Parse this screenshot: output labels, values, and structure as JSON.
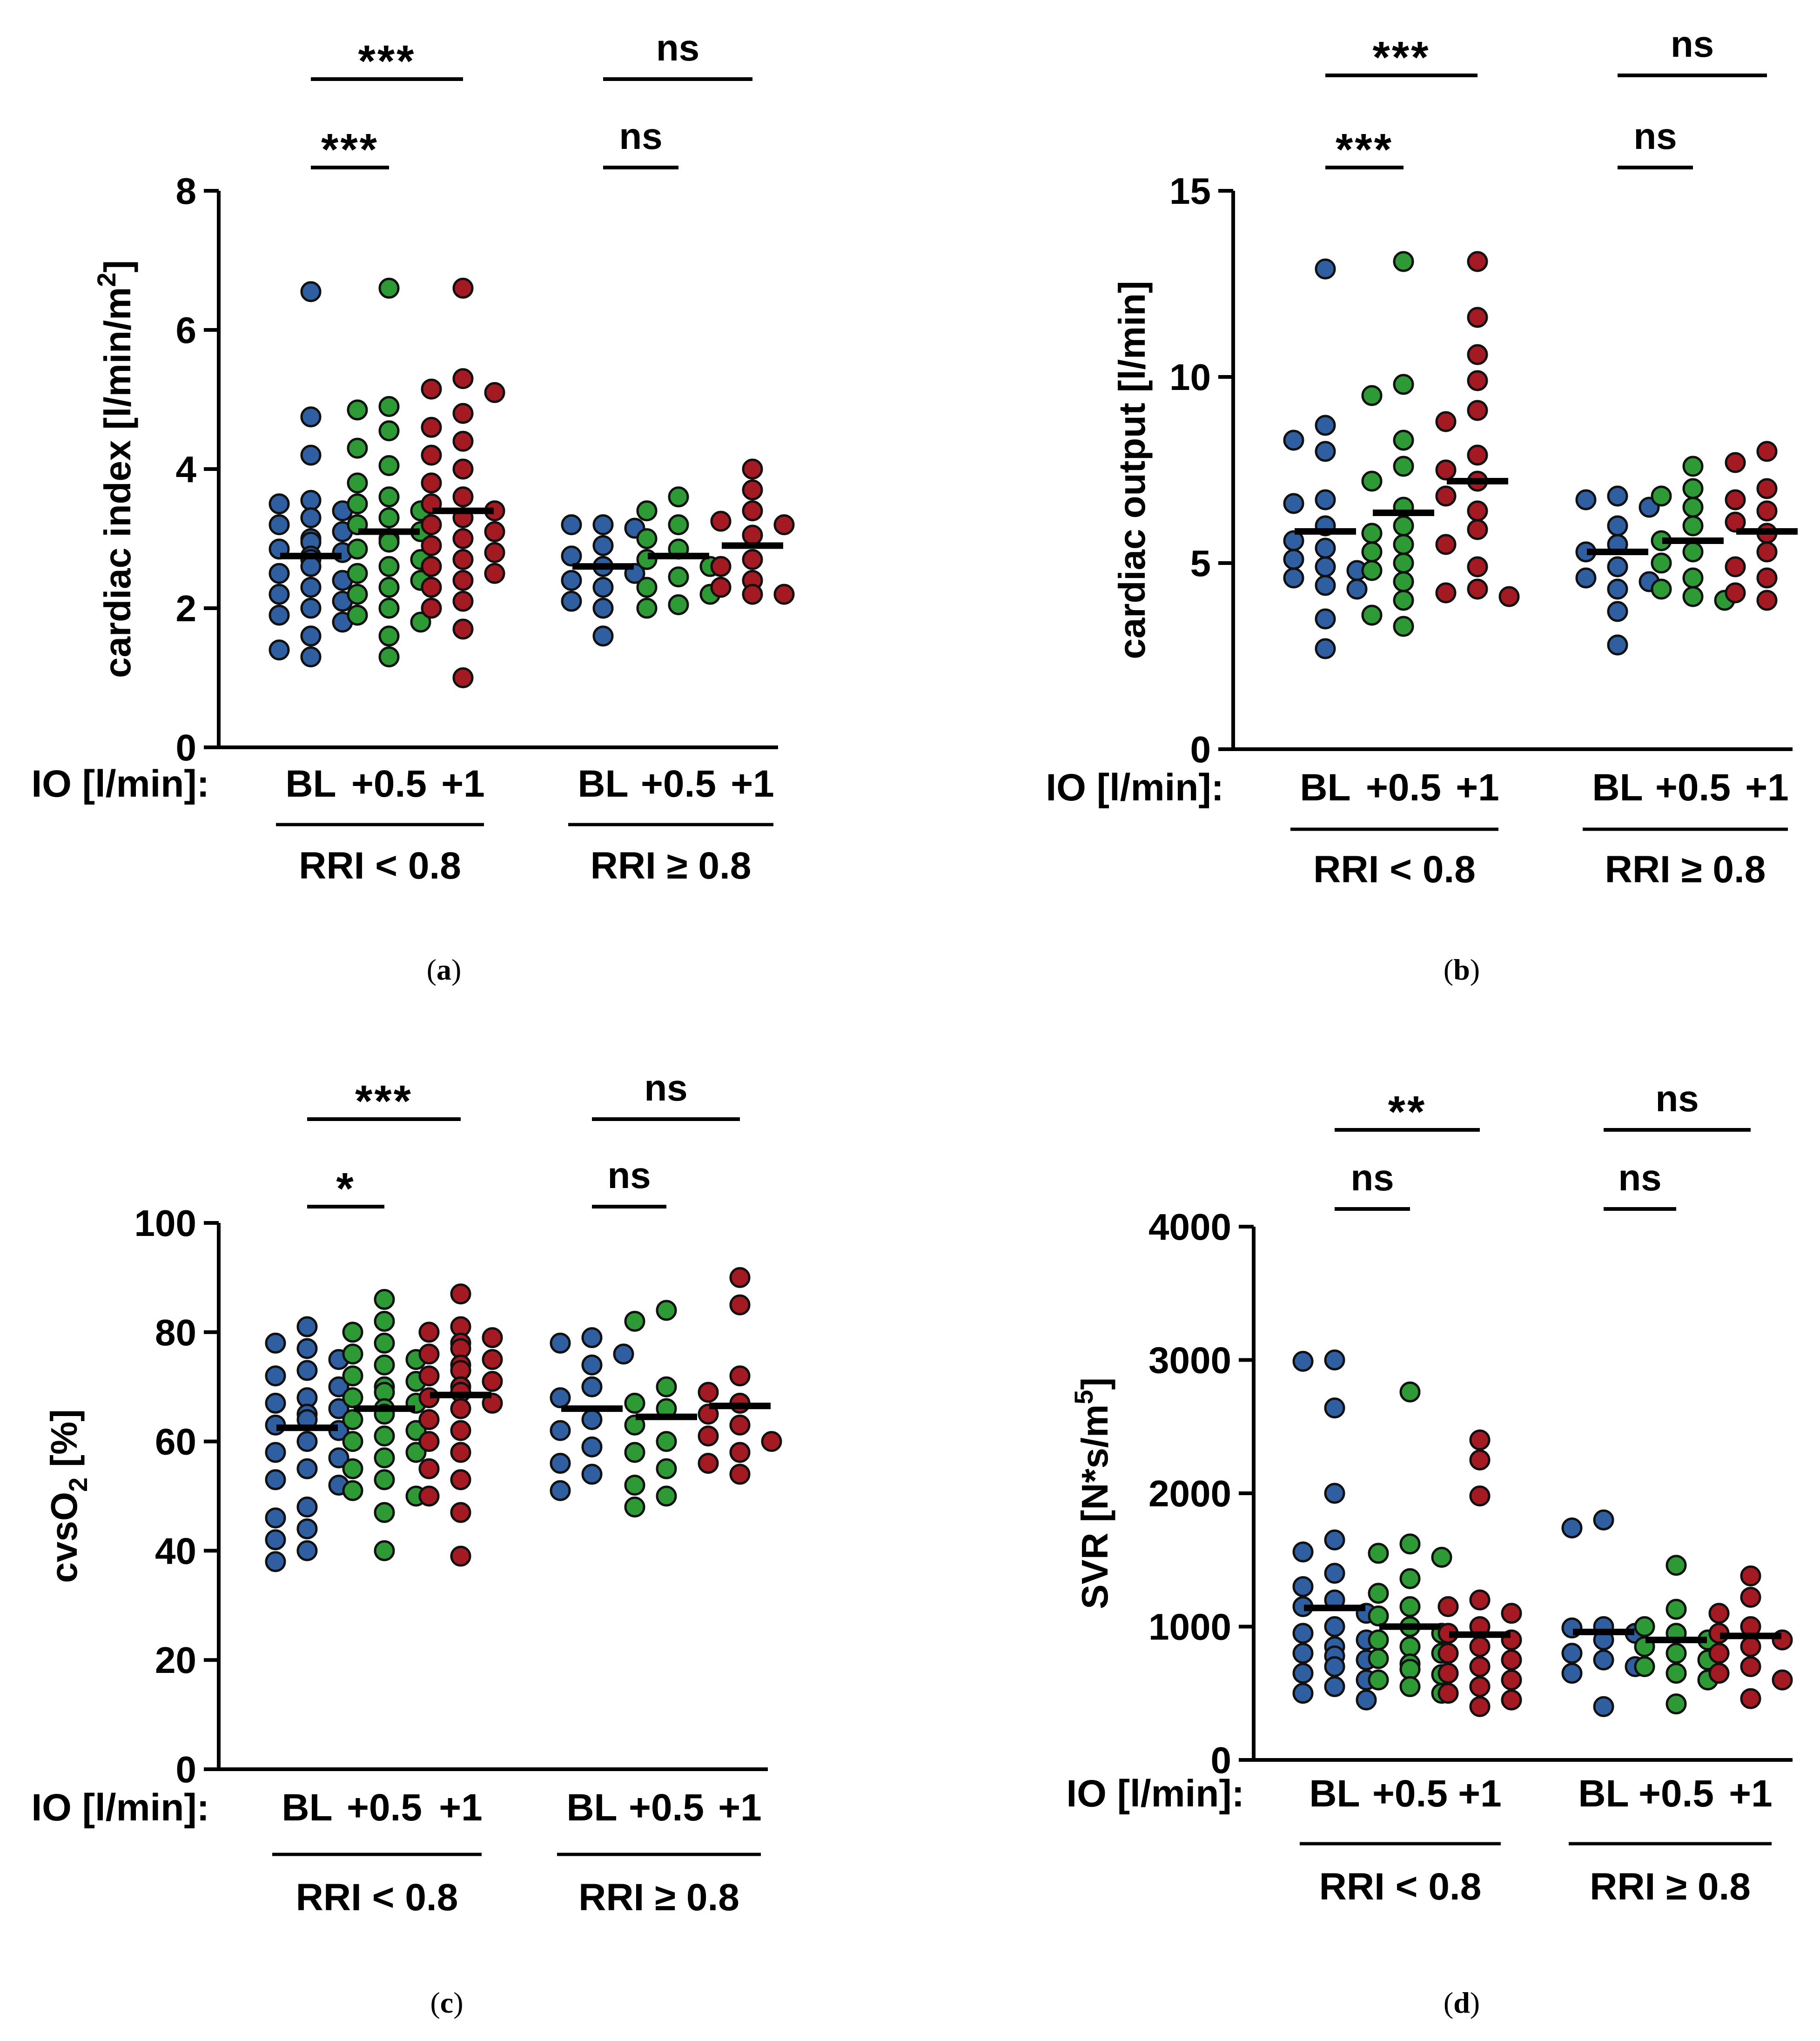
{
  "figure": {
    "io_label": "IO [l/min]:",
    "x_ticks": [
      "BL",
      "+0.5",
      "+1"
    ],
    "groups": [
      "RRI < 0.8",
      "RRI ≥ 0.8"
    ],
    "colors": {
      "BL": "#2f5fa0",
      "+0.5": "#2e9a35",
      "+1": "#a31a22",
      "edge": "#111111",
      "mean": "#000000"
    }
  },
  "chart_data": [
    {
      "id": "a",
      "type": "scatter",
      "caption": "a",
      "ylabel": "cardiac index [l/min/m2]",
      "ylabel_parts": {
        "main": "cardiac index [l/min/m",
        "sup": "2",
        "tail": "]"
      },
      "ylim": [
        0,
        8
      ],
      "yticks": [
        0,
        2,
        4,
        6,
        8
      ],
      "series": [
        {
          "group": "RRI < 0.8",
          "level": "BL",
          "mean": 2.75,
          "values": [
            6.55,
            4.75,
            4.2,
            3.55,
            3.5,
            3.4,
            3.3,
            3.2,
            3.1,
            3.0,
            2.95,
            2.85,
            2.8,
            2.75,
            2.7,
            2.6,
            2.5,
            2.4,
            2.3,
            2.2,
            2.1,
            2.0,
            1.9,
            1.8,
            1.6,
            1.4,
            1.3
          ]
        },
        {
          "group": "RRI < 0.8",
          "level": "+0.5",
          "mean": 3.1,
          "values": [
            6.6,
            4.9,
            4.85,
            4.55,
            4.3,
            4.05,
            3.8,
            3.6,
            3.5,
            3.4,
            3.3,
            3.2,
            3.1,
            3.0,
            2.95,
            2.85,
            2.7,
            2.6,
            2.5,
            2.4,
            2.3,
            2.2,
            2.0,
            1.9,
            1.8,
            1.6,
            1.3
          ]
        },
        {
          "group": "RRI < 0.8",
          "level": "+1",
          "mean": 3.4,
          "values": [
            6.6,
            5.3,
            5.15,
            5.1,
            4.8,
            4.6,
            4.4,
            4.2,
            4.0,
            3.8,
            3.6,
            3.5,
            3.4,
            3.3,
            3.2,
            3.1,
            3.0,
            2.9,
            2.8,
            2.7,
            2.6,
            2.5,
            2.4,
            2.3,
            2.1,
            2.0,
            1.7,
            1.0
          ]
        },
        {
          "group": "RRI ≥ 0.8",
          "level": "BL",
          "mean": 2.6,
          "values": [
            3.2,
            3.2,
            3.15,
            2.9,
            2.75,
            2.6,
            2.5,
            2.4,
            2.3,
            2.1,
            2.0,
            1.6
          ]
        },
        {
          "group": "RRI ≥ 0.8",
          "level": "+0.5",
          "mean": 2.75,
          "values": [
            3.6,
            3.4,
            3.2,
            3.0,
            2.85,
            2.7,
            2.6,
            2.45,
            2.3,
            2.2,
            2.05,
            2.0
          ]
        },
        {
          "group": "RRI ≥ 0.8",
          "level": "+1",
          "mean": 2.9,
          "values": [
            4.0,
            3.7,
            3.4,
            3.25,
            3.2,
            3.05,
            2.7,
            2.6,
            2.4,
            2.3,
            2.2,
            2.2
          ]
        }
      ],
      "significance": [
        {
          "group": "RRI < 0.8",
          "from": "BL",
          "to": "+1",
          "label": "***",
          "tier": 2
        },
        {
          "group": "RRI < 0.8",
          "from": "BL",
          "to": "+0.5",
          "label": "***",
          "tier": 1
        },
        {
          "group": "RRI ≥ 0.8",
          "from": "BL",
          "to": "+1",
          "label": "ns",
          "tier": 2
        },
        {
          "group": "RRI ≥ 0.8",
          "from": "BL",
          "to": "+0.5",
          "label": "ns",
          "tier": 1
        }
      ]
    },
    {
      "id": "b",
      "type": "scatter",
      "caption": "b",
      "ylabel": "cardiac output [l/min]",
      "ylabel_parts": {
        "main": "cardiac output [l/min]",
        "sup": "",
        "tail": ""
      },
      "ylim": [
        0,
        15
      ],
      "yticks": [
        0,
        5,
        10,
        15
      ],
      "series": [
        {
          "group": "RRI < 0.8",
          "level": "BL",
          "mean": 5.85,
          "values": [
            12.9,
            8.7,
            8.3,
            8.0,
            6.7,
            6.6,
            6.0,
            5.6,
            5.4,
            5.1,
            4.9,
            4.8,
            4.6,
            4.4,
            4.3,
            3.5,
            2.7
          ]
        },
        {
          "group": "RRI < 0.8",
          "level": "+0.5",
          "mean": 6.35,
          "values": [
            13.1,
            9.8,
            9.5,
            8.3,
            7.6,
            7.2,
            6.5,
            6.0,
            5.8,
            5.5,
            5.3,
            5.0,
            4.8,
            4.5,
            4.0,
            3.6,
            3.3
          ]
        },
        {
          "group": "RRI < 0.8",
          "level": "+1",
          "mean": 7.2,
          "values": [
            13.1,
            11.6,
            10.6,
            9.9,
            9.1,
            8.8,
            7.9,
            7.5,
            7.2,
            6.8,
            6.4,
            5.9,
            5.5,
            4.9,
            4.3,
            4.2,
            4.1
          ]
        },
        {
          "group": "RRI ≥ 0.8",
          "level": "BL",
          "mean": 5.3,
          "values": [
            6.8,
            6.7,
            6.5,
            6.0,
            5.5,
            5.3,
            4.9,
            4.6,
            4.5,
            4.3,
            3.7,
            2.8
          ]
        },
        {
          "group": "RRI ≥ 0.8",
          "level": "+0.5",
          "mean": 5.6,
          "values": [
            7.6,
            7.0,
            6.8,
            6.5,
            6.0,
            5.6,
            5.3,
            5.0,
            4.6,
            4.3,
            4.1,
            4.0
          ]
        },
        {
          "group": "RRI ≥ 0.8",
          "level": "+1",
          "mean": 5.85,
          "values": [
            8.0,
            7.7,
            7.0,
            6.7,
            6.4,
            6.1,
            5.8,
            5.3,
            4.9,
            4.6,
            4.2,
            4.0
          ]
        }
      ],
      "significance": [
        {
          "group": "RRI < 0.8",
          "from": "BL",
          "to": "+1",
          "label": "***",
          "tier": 2
        },
        {
          "group": "RRI < 0.8",
          "from": "BL",
          "to": "+0.5",
          "label": "***",
          "tier": 1
        },
        {
          "group": "RRI ≥ 0.8",
          "from": "BL",
          "to": "+1",
          "label": "ns",
          "tier": 2
        },
        {
          "group": "RRI ≥ 0.8",
          "from": "BL",
          "to": "+0.5",
          "label": "ns",
          "tier": 1
        }
      ]
    },
    {
      "id": "c",
      "type": "scatter",
      "caption": "c",
      "ylabel": "cvsO2 [%]",
      "ylabel_parts": {
        "main": "cvsO",
        "sub": "2",
        "tail": " [%]"
      },
      "ylim": [
        0,
        100
      ],
      "yticks": [
        0,
        20,
        40,
        60,
        80,
        100
      ],
      "series": [
        {
          "group": "RRI < 0.8",
          "level": "BL",
          "mean": 62.5,
          "values": [
            81,
            78,
            77,
            75,
            73,
            72,
            70,
            68,
            67,
            66,
            65,
            64,
            63,
            62,
            60,
            58,
            57,
            55,
            53,
            52,
            48,
            46,
            44,
            42,
            40,
            38
          ]
        },
        {
          "group": "RRI < 0.8",
          "level": "+0.5",
          "mean": 66,
          "values": [
            86,
            82,
            80,
            78,
            76,
            75,
            74,
            72,
            71,
            70,
            69,
            68,
            67,
            66,
            65,
            64,
            62,
            61,
            60,
            58,
            57,
            55,
            53,
            51,
            50,
            47,
            40
          ]
        },
        {
          "group": "RRI < 0.8",
          "level": "+1",
          "mean": 68.5,
          "values": [
            87,
            81,
            80,
            79,
            78,
            77,
            76,
            75,
            74,
            73,
            72,
            71,
            70,
            69,
            68,
            67,
            66,
            64,
            62,
            60,
            58,
            55,
            53,
            50,
            47,
            39
          ]
        },
        {
          "group": "RRI ≥ 0.8",
          "level": "BL",
          "mean": 66,
          "values": [
            79,
            78,
            76,
            74,
            70,
            68,
            64,
            62,
            59,
            56,
            54,
            51
          ]
        },
        {
          "group": "RRI ≥ 0.8",
          "level": "+0.5",
          "mean": 64.5,
          "values": [
            84,
            82,
            70,
            67,
            66,
            63,
            60,
            58,
            55,
            52,
            50,
            48
          ]
        },
        {
          "group": "RRI ≥ 0.8",
          "level": "+1",
          "mean": 66.5,
          "values": [
            90,
            85,
            72,
            69,
            67,
            65,
            63,
            61,
            60,
            58,
            56,
            54
          ]
        }
      ],
      "significance": [
        {
          "group": "RRI < 0.8",
          "from": "BL",
          "to": "+1",
          "label": "***",
          "tier": 2
        },
        {
          "group": "RRI < 0.8",
          "from": "BL",
          "to": "+0.5",
          "label": "*",
          "tier": 1
        },
        {
          "group": "RRI ≥ 0.8",
          "from": "BL",
          "to": "+1",
          "label": "ns",
          "tier": 2
        },
        {
          "group": "RRI ≥ 0.8",
          "from": "BL",
          "to": "+0.5",
          "label": "ns",
          "tier": 1
        }
      ]
    },
    {
      "id": "d",
      "type": "scatter",
      "caption": "d",
      "ylabel": "SVR [N*s/m5]",
      "ylabel_parts": {
        "main": "SVR [N*s/m",
        "sup": "5",
        "tail": "]"
      },
      "ylim": [
        0,
        4000
      ],
      "yticks": [
        0,
        1000,
        2000,
        3000,
        4000
      ],
      "series": [
        {
          "group": "RRI < 0.8",
          "level": "BL",
          "mean": 1140,
          "values": [
            3000,
            2990,
            2640,
            2000,
            1650,
            1560,
            1400,
            1300,
            1200,
            1150,
            1100,
            1000,
            950,
            900,
            850,
            800,
            780,
            750,
            700,
            650,
            600,
            550,
            500,
            450
          ]
        },
        {
          "group": "RRI < 0.8",
          "level": "+0.5",
          "mean": 1000,
          "values": [
            2760,
            1620,
            1550,
            1520,
            1360,
            1250,
            1150,
            1080,
            1000,
            950,
            900,
            850,
            800,
            760,
            720,
            680,
            640,
            600,
            550,
            500
          ]
        },
        {
          "group": "RRI < 0.8",
          "level": "+1",
          "mean": 940,
          "values": [
            2400,
            2250,
            1980,
            1200,
            1150,
            1100,
            1000,
            950,
            900,
            850,
            800,
            750,
            700,
            650,
            600,
            550,
            500,
            450,
            400
          ]
        },
        {
          "group": "RRI ≥ 0.8",
          "level": "BL",
          "mean": 960,
          "values": [
            1800,
            1740,
            1000,
            990,
            950,
            900,
            800,
            750,
            700,
            650,
            400
          ]
        },
        {
          "group": "RRI ≥ 0.8",
          "level": "+0.5",
          "mean": 900,
          "values": [
            1460,
            1130,
            1000,
            950,
            900,
            850,
            800,
            750,
            700,
            650,
            600,
            420
          ]
        },
        {
          "group": "RRI ≥ 0.8",
          "level": "+1",
          "mean": 930,
          "values": [
            1380,
            1220,
            1100,
            1000,
            950,
            900,
            850,
            800,
            700,
            650,
            600,
            460
          ]
        }
      ],
      "significance": [
        {
          "group": "RRI < 0.8",
          "from": "BL",
          "to": "+1",
          "label": "**",
          "tier": 2
        },
        {
          "group": "RRI < 0.8",
          "from": "BL",
          "to": "+0.5",
          "label": "ns",
          "tier": 1
        },
        {
          "group": "RRI ≥ 0.8",
          "from": "BL",
          "to": "+1",
          "label": "ns",
          "tier": 2
        },
        {
          "group": "RRI ≥ 0.8",
          "from": "BL",
          "to": "+0.5",
          "label": "ns",
          "tier": 1
        }
      ]
    }
  ]
}
